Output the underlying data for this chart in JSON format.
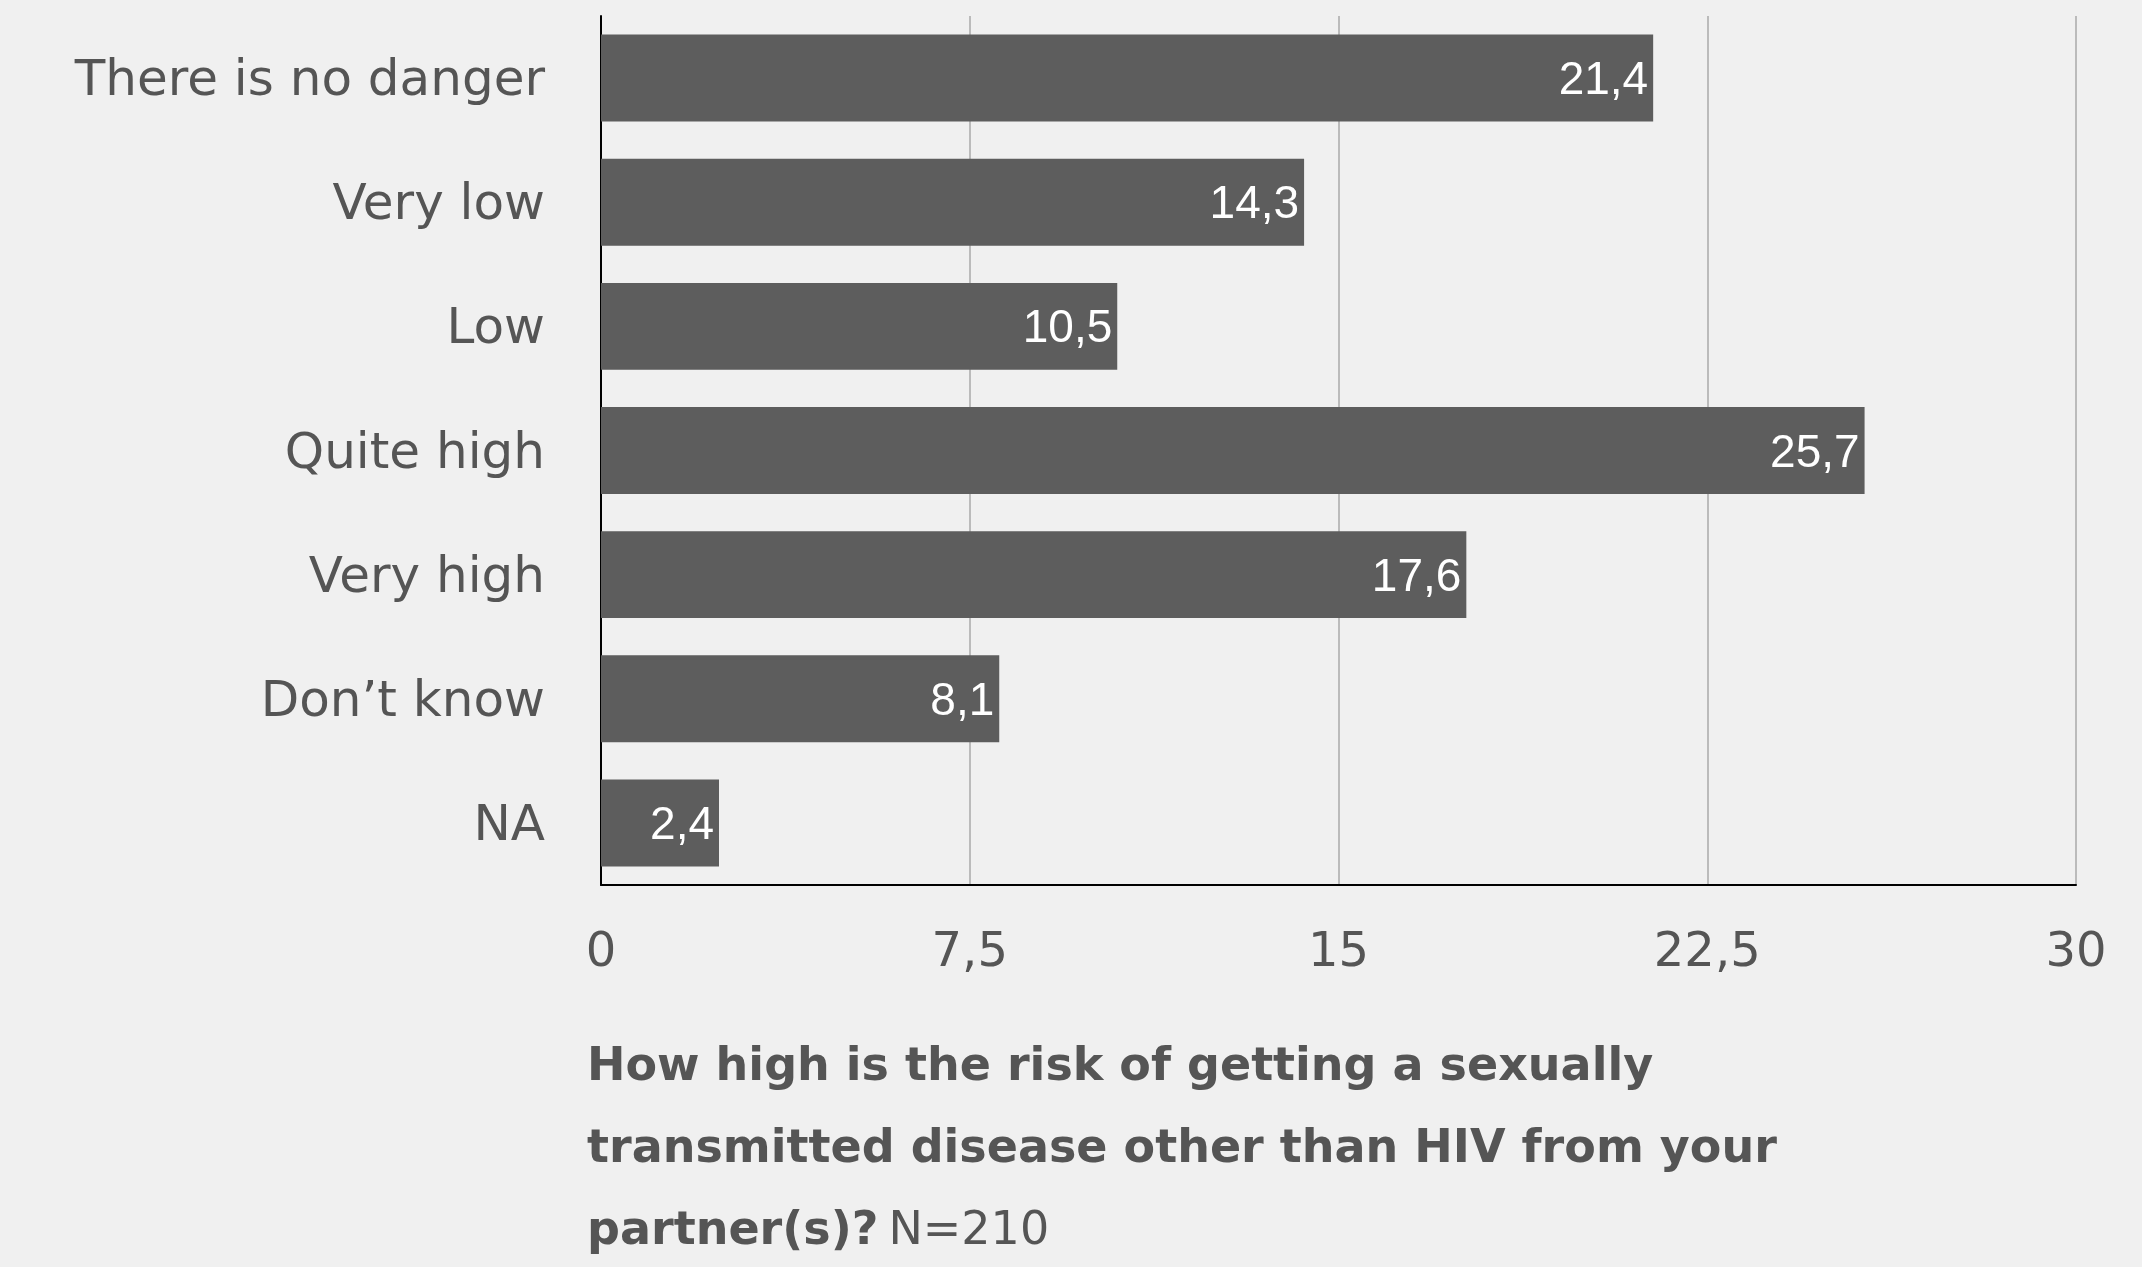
{
  "chart_data": {
    "type": "bar",
    "orientation": "horizontal",
    "title": "How high is the risk of getting a sexually transmitted disease other than HIV from your partner(s)?",
    "subtitle": "N=210",
    "categories": [
      "There is no danger",
      "Very low",
      "Low",
      "Quite high",
      "Very high",
      "Don’t know",
      "NA"
    ],
    "values": [
      21.4,
      14.3,
      10.5,
      25.7,
      17.6,
      8.1,
      2.4
    ],
    "value_labels": [
      "21,4",
      "14,3",
      "10,5",
      "25,7",
      "17,6",
      "8,1",
      "2,4"
    ],
    "color": "#5d5d5d",
    "xlim": [
      0,
      30
    ],
    "xticks": [
      0,
      {
        "value": 7.5,
        "label": "7,5"
      },
      15,
      {
        "value": 22.5,
        "label": "22,5"
      },
      30
    ],
    "grid": "x"
  }
}
